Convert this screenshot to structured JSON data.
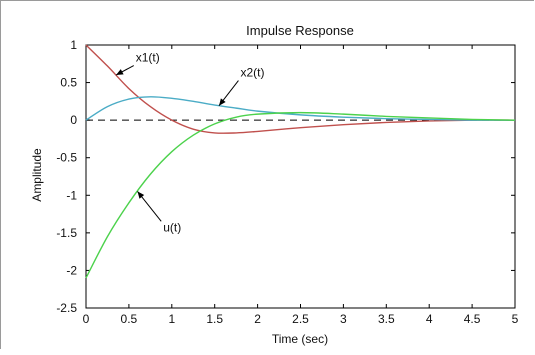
{
  "chart_data": {
    "type": "line",
    "title": "Impulse Response",
    "xlabel": "Time (sec)",
    "ylabel": "Amplitude",
    "xlim": [
      0,
      5
    ],
    "ylim": [
      -2.5,
      1
    ],
    "xticks": [
      0,
      0.5,
      1,
      1.5,
      2,
      2.5,
      3,
      3.5,
      4,
      4.5,
      5
    ],
    "xtick_labels": [
      "0",
      "0.5",
      "1",
      "1.5",
      "2",
      "2.5",
      "3",
      "3.5",
      "4",
      "4.5",
      "5"
    ],
    "yticks": [
      -2.5,
      -2,
      -1.5,
      -1,
      -0.5,
      0,
      0.5,
      1
    ],
    "ytick_labels": [
      "-2.5",
      "-2",
      "-1.5",
      "-1",
      "-0.5",
      "0",
      "0.5",
      "1"
    ],
    "grid": false,
    "reference_line": {
      "y": 0,
      "style": "dashed",
      "color": "#000000"
    },
    "series": [
      {
        "name": "x1(t)",
        "color": "#c0504d",
        "x": [
          0,
          0.25,
          0.5,
          0.75,
          1.0,
          1.25,
          1.5,
          1.75,
          2.0,
          2.5,
          3.0,
          3.5,
          4.0,
          4.5,
          5.0
        ],
        "y": [
          1.0,
          0.72,
          0.42,
          0.18,
          0.0,
          -0.12,
          -0.17,
          -0.17,
          -0.15,
          -0.1,
          -0.06,
          -0.03,
          -0.01,
          0.0,
          0.0
        ]
      },
      {
        "name": "x2(t)",
        "color": "#4bacc6",
        "x": [
          0,
          0.25,
          0.5,
          0.75,
          1.0,
          1.25,
          1.5,
          1.75,
          2.0,
          2.5,
          3.0,
          3.5,
          4.0,
          4.5,
          5.0
        ],
        "y": [
          0.0,
          0.18,
          0.28,
          0.31,
          0.29,
          0.25,
          0.2,
          0.16,
          0.12,
          0.07,
          0.04,
          0.02,
          0.01,
          0.0,
          0.0
        ]
      },
      {
        "name": "u(t)",
        "color": "#4cd24c",
        "x": [
          0,
          0.25,
          0.5,
          0.75,
          1.0,
          1.25,
          1.5,
          1.75,
          2.0,
          2.5,
          3.0,
          3.5,
          4.0,
          4.5,
          5.0
        ],
        "y": [
          -2.1,
          -1.55,
          -1.1,
          -0.72,
          -0.42,
          -0.2,
          -0.05,
          0.04,
          0.08,
          0.1,
          0.08,
          0.05,
          0.03,
          0.01,
          0.0
        ]
      }
    ],
    "annotations": [
      {
        "text": "x1(t)",
        "series": "x1(t)",
        "at_x": 0.35,
        "label_x": 0.58,
        "label_y": 0.78
      },
      {
        "text": "x2(t)",
        "series": "x2(t)",
        "at_x": 1.55,
        "label_x": 1.8,
        "label_y": 0.58
      },
      {
        "text": "u(t)",
        "series": "u(t)",
        "at_x": 0.6,
        "label_x": 0.9,
        "label_y": -1.48
      }
    ]
  }
}
